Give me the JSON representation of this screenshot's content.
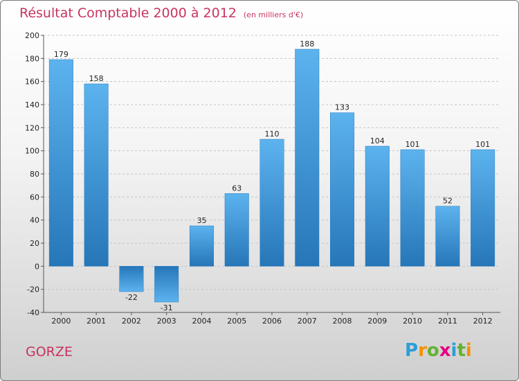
{
  "title": "Résultat Comptable 2000 à 2012",
  "unit": "(en milliers d'€)",
  "commune": "GORZE",
  "logo": {
    "letters": [
      "P",
      "r",
      "o",
      "x",
      "i",
      "t",
      "i"
    ],
    "colors": [
      "#2a9fd8",
      "#f39200",
      "#62b22f",
      "#e6007e",
      "#2a9fd8",
      "#62b22f",
      "#f39200"
    ]
  },
  "chart_data": {
    "type": "bar",
    "title": "Résultat Comptable 2000 à 2012",
    "xlabel": "",
    "ylabel": "",
    "ylim": [
      -40,
      200
    ],
    "yticks": [
      -40,
      -20,
      0,
      20,
      40,
      60,
      80,
      100,
      120,
      140,
      160,
      180,
      200
    ],
    "grid": "horizontal",
    "categories": [
      "2000",
      "2001",
      "2002",
      "2003",
      "2004",
      "2005",
      "2006",
      "2007",
      "2008",
      "2009",
      "2010",
      "2011",
      "2012"
    ],
    "values": [
      179,
      158,
      -22,
      -31,
      35,
      63,
      110,
      188,
      133,
      104,
      101,
      52,
      101
    ],
    "bar_color": "#3a94d8"
  }
}
